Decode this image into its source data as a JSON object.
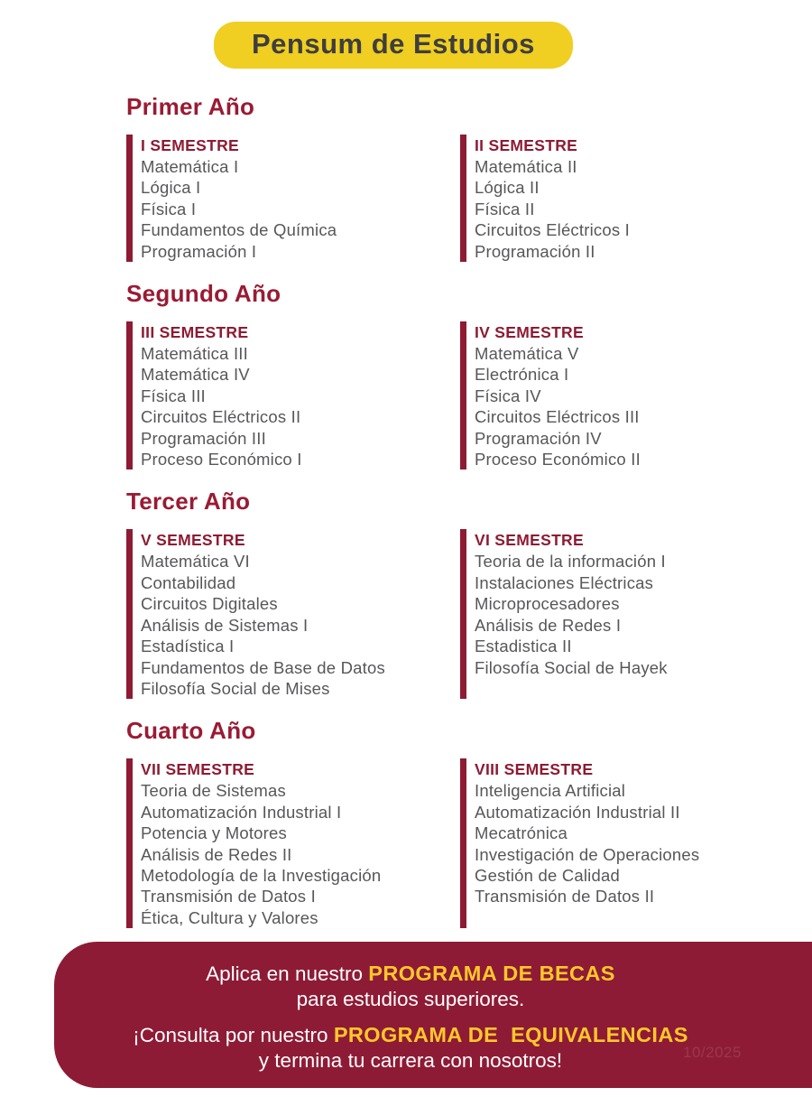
{
  "title": "Pensum de Estudios",
  "years": [
    {
      "name": "Primer Año",
      "semesters": [
        {
          "label": "I SEMESTRE",
          "courses": [
            "Matemática I",
            "Lógica I",
            "Física I",
            "Fundamentos de Química",
            "Programación I"
          ]
        },
        {
          "label": "II SEMESTRE",
          "courses": [
            "Matemática II",
            "Lógica II",
            "Física II",
            "Circuitos Eléctricos I",
            "Programación II"
          ]
        }
      ]
    },
    {
      "name": "Segundo Año",
      "semesters": [
        {
          "label": "III SEMESTRE",
          "courses": [
            "Matemática III",
            "Matemática IV",
            "Física III",
            "Circuitos Eléctricos II",
            "Programación III",
            "Proceso Económico I"
          ]
        },
        {
          "label": "IV SEMESTRE",
          "courses": [
            "Matemática V",
            "Electrónica I",
            "Física IV",
            "Circuitos Eléctricos III",
            "Programación IV",
            "Proceso Económico II"
          ]
        }
      ]
    },
    {
      "name": "Tercer Año",
      "semesters": [
        {
          "label": "V SEMESTRE",
          "courses": [
            "Matemática VI",
            "Contabilidad",
            "Circuitos Digitales",
            "Análisis de Sistemas I",
            "Estadística I",
            "Fundamentos de Base de Datos",
            "Filosofía Social de Mises"
          ]
        },
        {
          "label": "VI SEMESTRE",
          "courses": [
            "Teoria de la información I",
            "Instalaciones Eléctricas",
            "Microprocesadores",
            "Análisis de Redes I",
            "Estadistica II",
            "Filosofía Social de Hayek"
          ]
        }
      ]
    },
    {
      "name": "Cuarto Año",
      "semesters": [
        {
          "label": "VII SEMESTRE",
          "courses": [
            "Teoria de Sistemas",
            "Automatización Industrial I",
            "Potencia y Motores",
            "Análisis de Redes II",
            "Metodología de la Investigación",
            "Transmisión de Datos I",
            "Ética, Cultura y Valores"
          ]
        },
        {
          "label": "VIII SEMESTRE",
          "courses": [
            "Inteligencia Artificial",
            "Automatización Industrial II",
            "Mecatrónica",
            "Investigación de Operaciones",
            "Gestión de Calidad",
            "Transmisión de Datos II"
          ]
        }
      ]
    }
  ],
  "footer": {
    "line1_prefix": "Aplica en nuestro ",
    "line1_highlight": "PROGRAMA DE BECAS",
    "line2": "para estudios superiores.",
    "line3_prefix": "¡Consulta por nuestro ",
    "line3_highlight": "PROGRAMA DE  EQUIVALENCIAS",
    "line4": "y termina tu carrera con nosotros!",
    "watermark": "10/2025"
  },
  "colors": {
    "maroon_bar": "#8E1B33",
    "maroon_heading": "#9A1B33",
    "banner_background": "#8E1B35",
    "pill_yellow": "#F0CE22",
    "highlight_yellow": "#FFC72C",
    "title_text": "#3E3E3E",
    "course_text": "#57575A"
  }
}
